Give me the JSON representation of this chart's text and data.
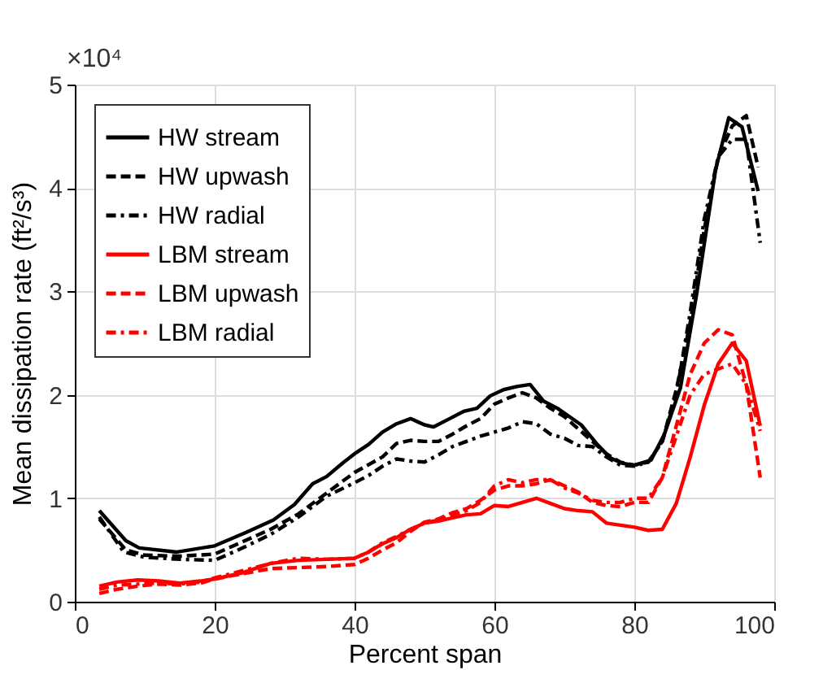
{
  "chart_data": {
    "type": "line",
    "xlabel": "Percent span",
    "ylabel": "Mean dissipation rate (ft²/s³)",
    "annotations": [
      "×10⁴"
    ],
    "xlim": [
      0,
      100
    ],
    "xticks": [
      0,
      20,
      40,
      60,
      80,
      100
    ],
    "ylim": [
      0,
      5
    ],
    "yticks": [
      0,
      1,
      2,
      3,
      4,
      5
    ],
    "grid": true,
    "legend": "top left",
    "series": [
      {
        "name": "HW stream",
        "color": "#000000",
        "line_style": "solid",
        "x": [
          3.5,
          7.3,
          9.2,
          14.6,
          20,
          24.5,
          28.4,
          31.4,
          34,
          36,
          38.3,
          40.2,
          42,
          44,
          46,
          48,
          50,
          51.3,
          53.6,
          55.6,
          57.5,
          59.4,
          61.3,
          63.2,
          65.1,
          67,
          69,
          72.4,
          74.7,
          76.6,
          78.2,
          80,
          82.4,
          84.3,
          86.6,
          88.9,
          91.6,
          93.5,
          95.4,
          97.7
        ],
        "values": [
          0.88,
          0.59,
          0.52,
          0.48,
          0.54,
          0.67,
          0.79,
          0.94,
          1.14,
          1.21,
          1.34,
          1.44,
          1.52,
          1.64,
          1.72,
          1.77,
          1.71,
          1.69,
          1.77,
          1.84,
          1.87,
          1.99,
          2.05,
          2.08,
          2.1,
          1.94,
          1.87,
          1.71,
          1.52,
          1.39,
          1.34,
          1.32,
          1.37,
          1.62,
          2.07,
          2.97,
          4.17,
          4.68,
          4.59,
          3.97
        ]
      },
      {
        "name": "HW upwash",
        "color": "#000000",
        "line_style": "dashed",
        "x": [
          3.5,
          7.3,
          10,
          15,
          20,
          24,
          28,
          32,
          36,
          40,
          44,
          46,
          48,
          50,
          52,
          54,
          56,
          58,
          60,
          62,
          64,
          66,
          68,
          70,
          72,
          74,
          76,
          78,
          80,
          82,
          84,
          86,
          88,
          90,
          92,
          94,
          96,
          97.7
        ],
        "values": [
          0.8,
          0.5,
          0.45,
          0.44,
          0.46,
          0.58,
          0.7,
          0.85,
          1.05,
          1.25,
          1.4,
          1.53,
          1.56,
          1.55,
          1.55,
          1.62,
          1.7,
          1.77,
          1.91,
          1.97,
          2.02,
          1.97,
          1.87,
          1.79,
          1.67,
          1.55,
          1.43,
          1.35,
          1.32,
          1.35,
          1.55,
          2.05,
          2.7,
          3.6,
          4.3,
          4.6,
          4.7,
          4.2
        ]
      },
      {
        "name": "HW radial",
        "color": "#000000",
        "line_style": "dashdot",
        "x": [
          3.5,
          7,
          10,
          15,
          20,
          24,
          28,
          32,
          36,
          40,
          42,
          44,
          46,
          48,
          50,
          52,
          54,
          56,
          58,
          60,
          62,
          64,
          66,
          68,
          70,
          72,
          74,
          76,
          78,
          80,
          82,
          84,
          86,
          88,
          90,
          92,
          94,
          96,
          98
        ],
        "values": [
          0.82,
          0.48,
          0.43,
          0.41,
          0.4,
          0.52,
          0.65,
          0.82,
          1.02,
          1.15,
          1.22,
          1.31,
          1.38,
          1.36,
          1.35,
          1.42,
          1.5,
          1.55,
          1.6,
          1.64,
          1.68,
          1.74,
          1.72,
          1.62,
          1.58,
          1.51,
          1.5,
          1.4,
          1.32,
          1.31,
          1.35,
          1.55,
          2.0,
          2.8,
          3.7,
          4.3,
          4.47,
          4.47,
          3.47
        ]
      },
      {
        "name": "LBM stream",
        "color": "#ff0000",
        "line_style": "solid",
        "x": [
          3.5,
          6,
          9,
          12,
          15,
          18,
          20,
          24,
          28,
          32,
          36,
          40,
          42,
          44,
          46,
          48,
          50,
          52,
          54,
          56,
          58,
          60,
          62,
          64,
          66,
          68,
          70,
          72,
          74,
          76,
          78,
          80,
          82,
          84,
          86,
          88,
          90,
          92,
          94,
          96,
          98
        ],
        "values": [
          0.15,
          0.19,
          0.21,
          0.2,
          0.18,
          0.2,
          0.22,
          0.28,
          0.37,
          0.4,
          0.41,
          0.42,
          0.48,
          0.56,
          0.62,
          0.7,
          0.76,
          0.78,
          0.81,
          0.84,
          0.85,
          0.93,
          0.92,
          0.96,
          1.0,
          0.95,
          0.9,
          0.88,
          0.87,
          0.76,
          0.74,
          0.72,
          0.69,
          0.7,
          0.95,
          1.4,
          1.9,
          2.3,
          2.5,
          2.33,
          1.7
        ]
      },
      {
        "name": "LBM upwash",
        "color": "#ff0000",
        "line_style": "dashed",
        "x": [
          3.5,
          6,
          9,
          12,
          15,
          18,
          20,
          24,
          28,
          32,
          36,
          40,
          42,
          44,
          46,
          48,
          50,
          52,
          54,
          56,
          58,
          60,
          62,
          64,
          66,
          68,
          70,
          72,
          74,
          76,
          78,
          80,
          82,
          84,
          86,
          88,
          90,
          92,
          94,
          96,
          98
        ],
        "values": [
          0.08,
          0.12,
          0.15,
          0.17,
          0.16,
          0.18,
          0.22,
          0.27,
          0.32,
          0.33,
          0.34,
          0.36,
          0.42,
          0.5,
          0.57,
          0.68,
          0.77,
          0.8,
          0.86,
          0.9,
          0.98,
          1.08,
          1.12,
          1.12,
          1.14,
          1.18,
          1.12,
          1.06,
          0.96,
          0.93,
          0.92,
          0.96,
          0.96,
          1.2,
          1.7,
          2.2,
          2.5,
          2.63,
          2.58,
          2.1,
          1.2
        ]
      },
      {
        "name": "LBM radial",
        "color": "#ff0000",
        "line_style": "dashdot",
        "x": [
          3.5,
          6,
          9,
          12,
          15,
          18,
          20,
          24,
          28,
          32,
          36,
          40,
          42,
          44,
          46,
          48,
          50,
          52,
          54,
          56,
          58,
          60,
          62,
          64,
          66,
          68,
          70,
          72,
          74,
          76,
          78,
          80,
          82,
          84,
          86,
          88,
          90,
          92,
          94,
          96,
          98
        ],
        "values": [
          0.12,
          0.16,
          0.17,
          0.18,
          0.17,
          0.19,
          0.23,
          0.3,
          0.37,
          0.42,
          0.41,
          0.42,
          0.48,
          0.57,
          0.63,
          0.7,
          0.76,
          0.79,
          0.84,
          0.88,
          0.96,
          1.12,
          1.18,
          1.15,
          1.18,
          1.18,
          1.1,
          1.05,
          0.98,
          0.96,
          0.96,
          1.0,
          1.0,
          1.2,
          1.6,
          2.0,
          2.2,
          2.25,
          2.3,
          2.1,
          1.65
        ]
      }
    ]
  }
}
